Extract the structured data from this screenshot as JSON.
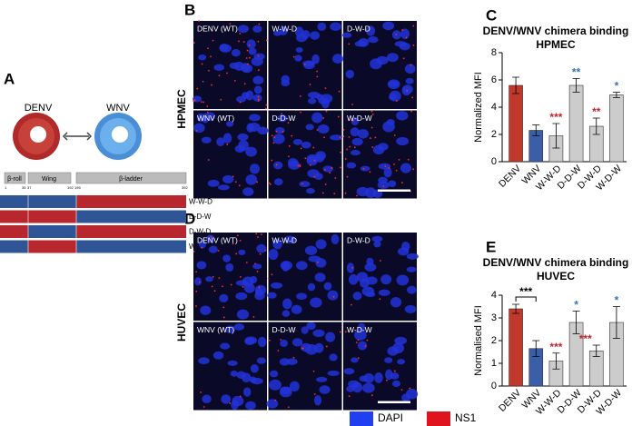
{
  "panel_a": {
    "label": "A",
    "denv": "DENV",
    "wnv": "WNV",
    "domains": [
      "β-roll",
      "Wing",
      "β-ladder"
    ],
    "positions": [
      "1",
      "35",
      "37",
      "192",
      "195",
      "392"
    ],
    "rows": [
      {
        "name": "W-W-D",
        "segments": [
          "#2f5597",
          "#2f5597",
          "#b8272d"
        ]
      },
      {
        "name": "D-D-W",
        "segments": [
          "#b8272d",
          "#b8272d",
          "#2f5597"
        ]
      },
      {
        "name": "D-W-D",
        "segments": [
          "#b8272d",
          "#2f5597",
          "#b8272d"
        ]
      },
      {
        "name": "W-D-W",
        "segments": [
          "#2f5597",
          "#b8272d",
          "#2f5597"
        ]
      }
    ]
  },
  "panel_b": {
    "label": "B",
    "cell": "HPMEC",
    "images": [
      "DENV (WT)",
      "W-W-D",
      "D-W-D",
      "WNV (WT)",
      "D-D-W",
      "W-D-W"
    ]
  },
  "panel_d": {
    "label": "D",
    "cell": "HUVEC",
    "images": [
      "DENV (WT)",
      "W-W-D",
      "D-W-D",
      "WNV (WT)",
      "D-D-W",
      "W-D-W"
    ]
  },
  "legend": [
    {
      "name": "DAPI",
      "color": "#1f3ff0"
    },
    {
      "name": "NS1",
      "color": "#e0141e"
    }
  ],
  "chart_data": [
    {
      "type": "bar",
      "label": "C",
      "title": [
        "DENV/WNV chimera binding",
        "HPMEC"
      ],
      "y_label": "Normalized MFI",
      "categories": [
        "DENV",
        "WNV",
        "W-W-D",
        "D-D-W",
        "D-W-D",
        "W-D-W"
      ],
      "values": [
        5.6,
        2.3,
        1.9,
        5.6,
        2.6,
        4.9
      ],
      "errors": [
        0.6,
        0.4,
        0.9,
        0.5,
        0.6,
        0.2
      ],
      "colors": [
        "#c0392b",
        "#3a5fa8",
        "#cccccc",
        "#cccccc",
        "#cccccc",
        "#cccccc"
      ],
      "ylim": [
        0,
        8
      ],
      "yticks": [
        0,
        2,
        4,
        6,
        8
      ],
      "significance": [
        null,
        null,
        {
          "text": "***",
          "color": "#c0262d"
        },
        {
          "text": "**",
          "color": "#3a6fb8"
        },
        {
          "text": "**",
          "color": "#c0262d"
        },
        {
          "text": "*",
          "color": "#3a6fb8"
        }
      ]
    },
    {
      "type": "bar",
      "label": "E",
      "title": [
        "DENV/WNV chimera binding",
        "HUVEC"
      ],
      "y_label": "Normalised MFI",
      "categories": [
        "DENV",
        "WNV",
        "W-W-D",
        "D-D-W",
        "D-W-D",
        "W-D-W"
      ],
      "values": [
        3.4,
        1.65,
        1.1,
        2.8,
        1.55,
        2.8
      ],
      "errors": [
        0.2,
        0.35,
        0.35,
        0.5,
        0.25,
        0.7
      ],
      "colors": [
        "#c0392b",
        "#3a5fa8",
        "#cccccc",
        "#cccccc",
        "#cccccc",
        "#cccccc"
      ],
      "ylim": [
        0,
        4
      ],
      "yticks": [
        0,
        1,
        2,
        3,
        4
      ],
      "significance": [
        null,
        null,
        {
          "text": "***",
          "color": "#c0262d"
        },
        {
          "text": "*",
          "color": "#3a6fb8"
        },
        {
          "text": "***",
          "color": "#c0262d"
        },
        {
          "text": "*",
          "color": "#3a6fb8"
        }
      ],
      "comparisons": [
        {
          "from": 0,
          "to": 1,
          "text": "***"
        }
      ]
    }
  ]
}
